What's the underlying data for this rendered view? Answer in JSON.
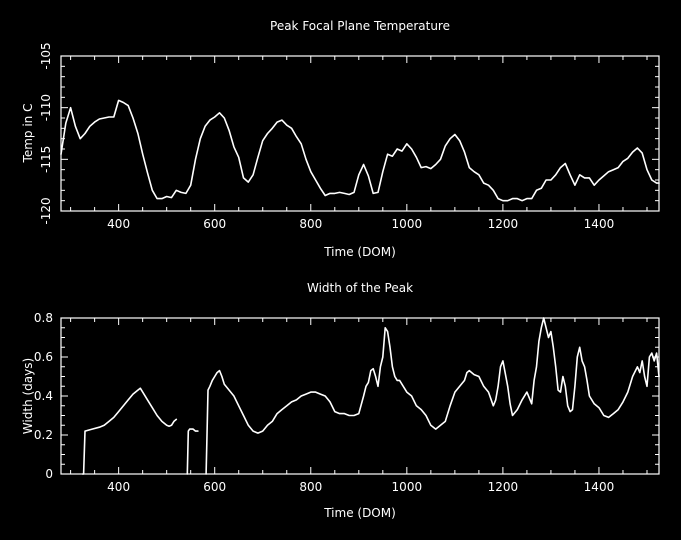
{
  "chart_data": [
    {
      "type": "line",
      "title": "Peak Focal Plane Temperature",
      "xlabel": "Time (DOM)",
      "ylabel": "Temp in C",
      "xlim": [
        280,
        1525
      ],
      "ylim": [
        -120,
        -105
      ],
      "xticks": [
        "400",
        "600",
        "800",
        "1000",
        "1200",
        "1400"
      ],
      "yticks": [
        "-120",
        "-115",
        "-110",
        "-105"
      ],
      "grid": false,
      "series": [
        {
          "x": [
            280,
            290,
            300,
            310,
            320,
            330,
            340,
            350,
            360,
            370,
            380,
            390,
            400,
            410,
            420,
            430,
            440,
            450,
            460,
            470,
            480,
            490,
            500,
            510,
            520,
            530,
            540,
            550,
            560,
            570,
            580,
            590,
            600,
            610,
            620,
            630,
            640,
            650,
            660,
            670,
            680,
            690,
            700,
            710,
            720,
            730,
            740,
            750,
            760,
            770,
            780,
            790,
            800,
            810,
            820,
            830,
            840,
            850,
            860,
            870,
            880,
            890,
            900,
            910,
            920,
            930,
            940,
            950,
            960,
            970,
            980,
            990,
            1000,
            1010,
            1020,
            1030,
            1040,
            1050,
            1060,
            1070,
            1080,
            1090,
            1100,
            1110,
            1120,
            1130,
            1140,
            1150,
            1160,
            1170,
            1180,
            1190,
            1200,
            1210,
            1220,
            1230,
            1240,
            1250,
            1260,
            1270,
            1280,
            1290,
            1300,
            1310,
            1320,
            1330,
            1340,
            1350,
            1360,
            1370,
            1380,
            1390,
            1400,
            1410,
            1420,
            1430,
            1440,
            1450,
            1460,
            1470,
            1480,
            1490,
            1500,
            1510,
            1520,
            1525
          ],
          "y": [
            -114.5,
            -111.5,
            -110.0,
            -111.8,
            -113.0,
            -112.5,
            -111.8,
            -111.4,
            -111.1,
            -111.0,
            -110.9,
            -110.9,
            -109.3,
            -109.5,
            -109.8,
            -111.0,
            -112.5,
            -114.5,
            -116.3,
            -118.0,
            -118.8,
            -118.8,
            -118.6,
            -118.7,
            -118.0,
            -118.2,
            -118.3,
            -117.5,
            -115.0,
            -113.0,
            -111.8,
            -111.2,
            -110.9,
            -110.5,
            -111.0,
            -112.2,
            -113.8,
            -114.8,
            -116.8,
            -117.2,
            -116.5,
            -114.8,
            -113.2,
            -112.5,
            -112.0,
            -111.4,
            -111.2,
            -111.7,
            -112.0,
            -112.8,
            -113.5,
            -115.0,
            -116.2,
            -117.0,
            -117.8,
            -118.5,
            -118.3,
            -118.3,
            -118.2,
            -118.3,
            -118.4,
            -118.2,
            -116.5,
            -115.5,
            -116.6,
            -118.3,
            -118.2,
            -116.2,
            -114.5,
            -114.7,
            -114.0,
            -114.2,
            -113.5,
            -114.0,
            -114.8,
            -115.8,
            -115.7,
            -115.9,
            -115.5,
            -115.0,
            -113.7,
            -113.0,
            -112.6,
            -113.2,
            -114.3,
            -115.8,
            -116.2,
            -116.5,
            -117.3,
            -117.5,
            -118.0,
            -118.8,
            -119.0,
            -119.0,
            -118.8,
            -118.8,
            -119.0,
            -118.8,
            -118.8,
            -118.0,
            -117.8,
            -117.0,
            -117.0,
            -116.5,
            -115.8,
            -115.4,
            -116.5,
            -117.5,
            -116.5,
            -116.8,
            -116.8,
            -117.5,
            -117.0,
            -116.6,
            -116.2,
            -116.0,
            -115.8,
            -115.2,
            -114.9,
            -114.3,
            -113.9,
            -114.4,
            -116.0,
            -117.0,
            -117.3,
            -117.3
          ]
        }
      ]
    },
    {
      "type": "line",
      "title": "Width of the Peak",
      "xlabel": "Time (DOM)",
      "ylabel": "Width (days)",
      "xlim": [
        280,
        1525
      ],
      "ylim": [
        0,
        0.8
      ],
      "xticks": [
        "400",
        "600",
        "800",
        "1000",
        "1200",
        "1400"
      ],
      "yticks": [
        "0",
        "0.2",
        "0.4",
        "0.6",
        "0.8"
      ],
      "grid": false,
      "series": [
        {
          "segments": [
            {
              "x": [
                325,
                327,
                330,
                345,
                360,
                370,
                380,
                390,
                400,
                410,
                420,
                430,
                440,
                445,
                450,
                460,
                470,
                480,
                490,
                500,
                505,
                510,
                515,
                520
              ],
              "y": [
                0,
                0.0,
                0.22,
                0.23,
                0.24,
                0.25,
                0.27,
                0.29,
                0.32,
                0.35,
                0.38,
                0.41,
                0.43,
                0.44,
                0.42,
                0.38,
                0.34,
                0.3,
                0.27,
                0.25,
                0.245,
                0.25,
                0.27,
                0.28
              ]
            },
            {
              "x": [
                543,
                545,
                548,
                555,
                560,
                565
              ],
              "y": [
                0,
                0.22,
                0.23,
                0.23,
                0.22,
                0.22
              ]
            },
            {
              "x": [
                582,
                584,
                586,
                590,
                595,
                600,
                605,
                610,
                615,
                620,
                630,
                640,
                650,
                660,
                670,
                680,
                690,
                700,
                710,
                720,
                730,
                740,
                750,
                760,
                770,
                780,
                790,
                800,
                810,
                820,
                830,
                840,
                850,
                860,
                870,
                880,
                890,
                900,
                910,
                915,
                920,
                925,
                930,
                935,
                940,
                945,
                950,
                955,
                960,
                965,
                970,
                975,
                980,
                985,
                990,
                995,
                1000,
                1010,
                1020,
                1030,
                1040,
                1050,
                1060,
                1070,
                1080,
                1090,
                1100,
                1110,
                1120,
                1125,
                1130,
                1140,
                1150,
                1160,
                1170,
                1180,
                1185,
                1190,
                1195,
                1200,
                1210,
                1215,
                1220,
                1230,
                1240,
                1250,
                1260,
                1265,
                1270,
                1275,
                1280,
                1285,
                1290,
                1295,
                1300,
                1305,
                1310,
                1315,
                1320,
                1325,
                1330,
                1335,
                1340,
                1345,
                1350,
                1355,
                1360,
                1365,
                1370,
                1375,
                1380,
                1390,
                1400,
                1410,
                1420,
                1430,
                1440,
                1450,
                1460,
                1470,
                1480,
                1485,
                1490,
                1495,
                1500,
                1505,
                1510,
                1515,
                1520,
                1525
              ],
              "y": [
                0,
                0.2,
                0.43,
                0.45,
                0.48,
                0.5,
                0.52,
                0.53,
                0.5,
                0.46,
                0.43,
                0.4,
                0.35,
                0.3,
                0.25,
                0.22,
                0.21,
                0.22,
                0.25,
                0.27,
                0.31,
                0.33,
                0.35,
                0.37,
                0.38,
                0.4,
                0.41,
                0.42,
                0.42,
                0.41,
                0.4,
                0.37,
                0.32,
                0.31,
                0.31,
                0.3,
                0.3,
                0.31,
                0.4,
                0.45,
                0.47,
                0.53,
                0.54,
                0.5,
                0.45,
                0.55,
                0.6,
                0.75,
                0.73,
                0.65,
                0.55,
                0.5,
                0.48,
                0.48,
                0.46,
                0.44,
                0.42,
                0.4,
                0.35,
                0.33,
                0.3,
                0.25,
                0.23,
                0.25,
                0.27,
                0.35,
                0.42,
                0.45,
                0.48,
                0.52,
                0.53,
                0.51,
                0.5,
                0.45,
                0.42,
                0.35,
                0.38,
                0.45,
                0.55,
                0.58,
                0.45,
                0.36,
                0.3,
                0.33,
                0.38,
                0.42,
                0.36,
                0.48,
                0.55,
                0.68,
                0.75,
                0.8,
                0.75,
                0.7,
                0.73,
                0.65,
                0.55,
                0.43,
                0.42,
                0.5,
                0.45,
                0.35,
                0.32,
                0.33,
                0.45,
                0.6,
                0.65,
                0.58,
                0.55,
                0.48,
                0.4,
                0.36,
                0.34,
                0.3,
                0.29,
                0.31,
                0.33,
                0.37,
                0.42,
                0.5,
                0.55,
                0.52,
                0.58,
                0.5,
                0.45,
                0.6,
                0.62,
                0.58,
                0.62,
                0.5
              ]
            }
          ]
        }
      ]
    }
  ]
}
